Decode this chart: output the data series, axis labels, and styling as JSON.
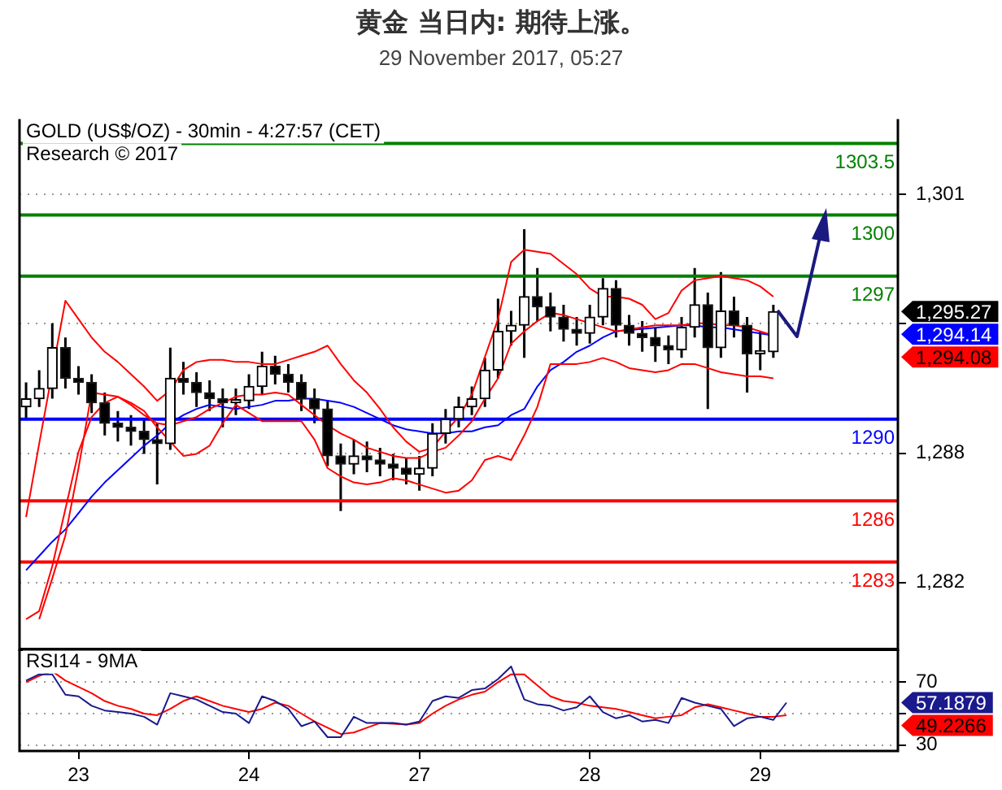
{
  "chart_data": [
    {
      "type": "candlestick",
      "title": "黄金 当日内: 期待上涨。",
      "subtitle": "29 November 2017, 05:27",
      "annotations": [
        "GOLD (US$/OZ) - 30min - 4:27:57 (CET)",
        "Research © 2017",
        "1,295.27",
        "1,294.14",
        "1,294.08"
      ],
      "categories": [
        null,
        null,
        null,
        null,
        "23",
        null,
        null,
        null,
        null,
        null,
        null,
        null,
        null,
        null,
        null,
        null,
        null,
        "24",
        null,
        null,
        null,
        null,
        null,
        null,
        null,
        null,
        null,
        null,
        null,
        null,
        "27",
        null,
        null,
        null,
        null,
        null,
        null,
        null,
        null,
        null,
        null,
        null,
        null,
        "28",
        null,
        null,
        null,
        null,
        null,
        null,
        null,
        null,
        null,
        null,
        null,
        null,
        "29",
        null,
        null,
        null,
        null,
        null,
        null,
        null,
        null,
        null,
        null
      ],
      "ohlc": [
        [
          1290.6,
          1291.8,
          1290.0,
          1291.0
        ],
        [
          1291.0,
          1292.4,
          1290.6,
          1291.5
        ],
        [
          1291.5,
          1294.7,
          1291.0,
          1293.5
        ],
        [
          1293.5,
          1294.0,
          1291.5,
          1292.0
        ],
        [
          1292.0,
          1292.6,
          1291.2,
          1291.8
        ],
        [
          1291.8,
          1292.2,
          1290.3,
          1290.8
        ],
        [
          1290.8,
          1291.3,
          1289.2,
          1289.8
        ],
        [
          1289.8,
          1290.4,
          1288.9,
          1289.6
        ],
        [
          1289.6,
          1290.2,
          1288.7,
          1289.4
        ],
        [
          1289.4,
          1290.0,
          1288.3,
          1289.0
        ],
        [
          1289.0,
          1289.8,
          1286.8,
          1288.8
        ],
        [
          1288.8,
          1293.5,
          1288.5,
          1292.0
        ],
        [
          1292.0,
          1292.8,
          1291.2,
          1291.8
        ],
        [
          1291.8,
          1292.3,
          1290.6,
          1291.3
        ],
        [
          1291.3,
          1291.9,
          1290.4,
          1291.0
        ],
        [
          1291.0,
          1291.5,
          1289.6,
          1290.8
        ],
        [
          1290.8,
          1291.5,
          1290.2,
          1290.9
        ],
        [
          1290.9,
          1292.2,
          1290.5,
          1291.6
        ],
        [
          1291.6,
          1293.3,
          1291.2,
          1292.6
        ],
        [
          1292.6,
          1293.1,
          1291.7,
          1292.2
        ],
        [
          1292.2,
          1292.7,
          1291.3,
          1291.8
        ],
        [
          1291.8,
          1292.2,
          1290.4,
          1291.0
        ],
        [
          1291.0,
          1291.5,
          1289.8,
          1290.5
        ],
        [
          1290.5,
          1290.9,
          1287.7,
          1288.2
        ],
        [
          1288.2,
          1288.8,
          1285.5,
          1287.8
        ],
        [
          1287.8,
          1289.0,
          1287.3,
          1288.2
        ],
        [
          1288.2,
          1288.9,
          1287.4,
          1288.0
        ],
        [
          1288.0,
          1288.6,
          1287.2,
          1287.8
        ],
        [
          1287.8,
          1288.3,
          1287.0,
          1287.6
        ],
        [
          1287.6,
          1288.1,
          1286.8,
          1287.3
        ],
        [
          1287.3,
          1288.2,
          1286.5,
          1287.6
        ],
        [
          1287.6,
          1289.8,
          1287.2,
          1289.3
        ],
        [
          1289.3,
          1290.5,
          1288.8,
          1290.0
        ],
        [
          1290.0,
          1291.1,
          1289.6,
          1290.6
        ],
        [
          1290.6,
          1291.6,
          1290.2,
          1291.0
        ],
        [
          1291.0,
          1293.0,
          1290.6,
          1292.4
        ],
        [
          1292.4,
          1295.9,
          1292.0,
          1294.3
        ],
        [
          1294.3,
          1295.3,
          1293.6,
          1294.6
        ],
        [
          1294.6,
          1299.3,
          1293.0,
          1296.0
        ],
        [
          1296.0,
          1297.4,
          1294.8,
          1295.5
        ],
        [
          1295.5,
          1296.2,
          1294.3,
          1295.0
        ],
        [
          1295.0,
          1295.6,
          1293.8,
          1294.4
        ],
        [
          1294.4,
          1295.0,
          1293.6,
          1294.2
        ],
        [
          1294.2,
          1295.6,
          1293.7,
          1295.0
        ],
        [
          1295.0,
          1296.9,
          1294.6,
          1296.4
        ],
        [
          1296.4,
          1296.8,
          1294.0,
          1294.6
        ],
        [
          1294.6,
          1295.1,
          1293.6,
          1294.2
        ],
        [
          1294.2,
          1294.8,
          1293.3,
          1294.0
        ],
        [
          1294.0,
          1294.5,
          1292.8,
          1293.6
        ],
        [
          1293.6,
          1294.1,
          1292.7,
          1293.4
        ],
        [
          1293.4,
          1295.0,
          1293.0,
          1294.5
        ],
        [
          1294.5,
          1297.4,
          1294.0,
          1295.6
        ],
        [
          1295.6,
          1296.2,
          1290.5,
          1293.5
        ],
        [
          1293.5,
          1297.2,
          1293.0,
          1295.3
        ],
        [
          1295.3,
          1296.0,
          1294.0,
          1294.6
        ],
        [
          1294.6,
          1295.0,
          1291.3,
          1293.2
        ],
        [
          1293.2,
          1294.3,
          1292.4,
          1293.3
        ],
        [
          1293.3,
          1295.6,
          1293.0,
          1295.27
        ],
        null,
        null,
        null,
        null,
        null,
        null,
        null,
        null,
        null
      ],
      "series": [
        {
          "type": "line",
          "color": "#ff0000",
          "values": [
            1285.2,
            1288.8,
            null,
            1295.8,
            1294.9,
            1294.0,
            1293.3,
            1292.8,
            1292.2,
            1291.6,
            1290.9,
            1291.4,
            1292.4,
            1292.8,
            1292.9,
            1292.9,
            1292.8,
            1292.8,
            1292.7,
            1292.7,
            1292.9,
            1293.1,
            1293.3,
            1293.6,
            1292.7,
            1291.9,
            1291.3,
            1290.5,
            1289.6,
            1288.9,
            1288.4,
            1288.6,
            1289.4,
            1290.1,
            1291.2,
            null,
            1294.9,
            1297.7,
            1298.3,
            1298.2,
            1298.1,
            1297.6,
            1297.1,
            1296.4,
            1296.0,
            1296.0,
            1295.9,
            1295.6,
            1294.9,
            1295.2,
            1296.3,
            1296.8,
            1296.9,
            1297.0,
            1296.9,
            1296.8,
            1296.5,
            1296.0,
            null,
            null,
            null,
            null,
            null,
            null,
            null,
            null,
            null
          ]
        },
        {
          "type": "line",
          "color": "#ff0000",
          "values": [
            null,
            1280.2,
            1282.2,
            1284.3,
            1287.6,
            1291.3,
            1291.2,
            1291.1,
            1290.7,
            1290.2,
            1289.8,
            1289.7,
            1289.9,
            1290.1,
            1290.5,
            1290.8,
            1291.1,
            1291.2,
            1291.2,
            1291.3,
            1291.2,
            1290.7,
            1290.2,
            1289.7,
            1289.3,
            1289.0,
            1288.6,
            1288.4,
            1288.2,
            1288.1,
            1288.1,
            1288.4,
            1288.6,
            1289.2,
            1289.9,
            1291.0,
            1292.0,
            1293.7,
            1294.3,
            1294.8,
            1295.2,
            1295.1,
            1294.9,
            1294.7,
            1294.5,
            1294.3,
            1294.4,
            1294.5,
            1294.6,
            1294.6,
            1294.6,
            1294.7,
            1294.7,
            1294.6,
            1294.6,
            1294.5,
            1294.3,
            1294.1,
            null,
            null,
            null,
            null,
            null,
            null,
            null,
            null,
            null
          ]
        },
        {
          "type": "line",
          "color": "#ff0000",
          "values": [
            1280.2,
            1280.6,
            1282.8,
            1285.6,
            1288.4,
            1290.1,
            1290.8,
            1291.1,
            1290.8,
            1290.4,
            1289.6,
            1288.9,
            1288.2,
            1288.3,
            1288.7,
            1289.8,
            1290.7,
            1290.3,
            1289.9,
            1289.9,
            1289.9,
            1289.9,
            1289.0,
            1287.6,
            1287.2,
            1286.9,
            1286.8,
            1286.9,
            1287.1,
            1287.0,
            1286.8,
            1286.6,
            1286.4,
            1286.5,
            1287.0,
            1288.0,
            1288.2,
            1288.0,
            1289.2,
            1290.6,
            1292.7,
            1292.7,
            1292.7,
            1292.8,
            1293.0,
            1292.8,
            1292.5,
            1292.4,
            1292.3,
            1292.4,
            1292.7,
            1292.7,
            1292.5,
            1292.3,
            1292.2,
            1292.1,
            1292.1,
            1292.0,
            null,
            null,
            null,
            null,
            null,
            null,
            null,
            null,
            null
          ]
        },
        {
          "type": "line",
          "color": "#0000ff",
          "values": [
            1282.6,
            1283.3,
            1284.0,
            1284.6,
            1285.4,
            1286.2,
            1286.9,
            1287.5,
            1288.1,
            1288.7,
            1289.2,
            1289.8,
            1290.2,
            1290.5,
            1290.7,
            1290.6,
            1290.5,
            1290.6,
            1290.7,
            1290.9,
            1290.9,
            1291.0,
            1291.0,
            1290.9,
            1290.8,
            1290.6,
            1290.3,
            1290.0,
            1289.7,
            1289.5,
            1289.4,
            1289.3,
            1289.3,
            1289.4,
            1289.4,
            1289.6,
            1289.7,
            1290.2,
            1290.5,
            1291.6,
            1292.4,
            1292.8,
            1293.3,
            1293.6,
            1294.0,
            1294.3,
            null,
            null,
            null,
            null,
            1294.6,
            1294.6,
            1294.5,
            1294.5,
            1294.4,
            1294.3,
            1294.2,
            1294.1,
            null,
            null,
            null,
            null,
            null,
            null,
            null,
            null,
            null
          ]
        }
      ],
      "ref_lines": [
        {
          "axis": "y",
          "value": 1303.5,
          "label": "1303.5",
          "color": "#008000"
        },
        {
          "axis": "y",
          "value": 1300,
          "label": "1300",
          "color": "#008000"
        },
        {
          "axis": "y",
          "value": 1297,
          "label": "1297",
          "color": "#008000"
        },
        {
          "axis": "y",
          "value": 1290,
          "label": "1290",
          "color": "#0000ff"
        },
        {
          "axis": "y",
          "value": 1286,
          "label": "1286",
          "color": "#ff0000"
        },
        {
          "axis": "y",
          "value": 1283,
          "label": "1283",
          "color": "#ff0000"
        }
      ],
      "ylim": [
        1278.7,
        1304.7
      ],
      "yticks": [
        {
          "value": 1282,
          "label": "1,282"
        },
        {
          "value": 1288.33,
          "label": "1,288"
        },
        {
          "value": 1294.67,
          "label": null
        },
        {
          "value": 1301,
          "label": "1,301"
        }
      ],
      "grid": "y",
      "tick_labels": "y"
    },
    {
      "type": "line",
      "title": "RSI14 - 9MA",
      "annotations": [
        "57.1879",
        "49.2266"
      ],
      "categories": [
        null,
        null,
        null,
        null,
        "23",
        null,
        null,
        null,
        null,
        null,
        null,
        null,
        null,
        null,
        null,
        null,
        null,
        "24",
        null,
        null,
        null,
        null,
        null,
        null,
        null,
        null,
        null,
        null,
        null,
        null,
        "27",
        null,
        null,
        null,
        null,
        null,
        null,
        null,
        null,
        null,
        null,
        null,
        null,
        "28",
        null,
        null,
        null,
        null,
        null,
        null,
        null,
        null,
        null,
        null,
        null,
        null,
        "29",
        null,
        null,
        null,
        null,
        null,
        null,
        null,
        null,
        null,
        null
      ],
      "series": [
        {
          "color": "#1a1a8c",
          "values": [
            71,
            75,
            75,
            62,
            61,
            55,
            52,
            51,
            50,
            48,
            43,
            63,
            61,
            59,
            55,
            51,
            50,
            44,
            61,
            58,
            53,
            42,
            45,
            35,
            35,
            48,
            44,
            44,
            44,
            43,
            45,
            58,
            61,
            60,
            65,
            66,
            72,
            80,
            59,
            56,
            55,
            52,
            54,
            61,
            51,
            47,
            49,
            45,
            46,
            44,
            60,
            57,
            55,
            53,
            42,
            47,
            48,
            46,
            57,
            null,
            null,
            null,
            null,
            null,
            null,
            null,
            null
          ]
        },
        {
          "color": "#ff0000",
          "values": [
            70,
            74,
            77,
            71,
            67,
            63,
            58,
            55,
            53,
            50,
            49,
            53,
            58,
            61,
            58,
            55,
            53,
            51,
            53,
            57,
            55,
            50,
            45,
            41,
            37,
            38,
            41,
            44,
            null,
            43,
            44,
            50,
            55,
            59,
            62,
            64,
            70,
            75,
            75,
            68,
            61,
            58,
            57,
            55,
            54,
            53,
            51,
            49,
            47,
            48,
            49,
            54,
            56,
            54,
            52,
            50,
            48,
            48,
            49,
            null,
            null,
            null,
            null,
            null,
            null,
            null,
            null
          ]
        }
      ],
      "ylim": [
        26.2,
        91.2
      ],
      "yticks": [
        30,
        {
          "value": 50,
          "label": null
        },
        70
      ],
      "grid": "y"
    }
  ]
}
